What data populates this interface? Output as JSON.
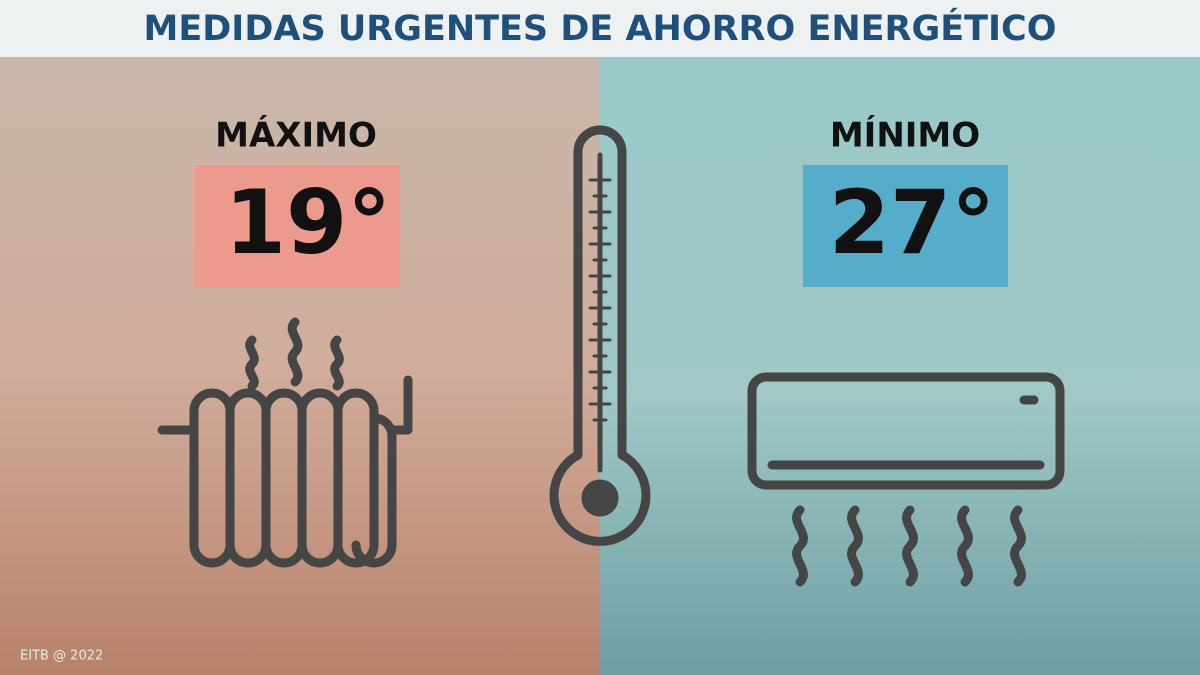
{
  "header": {
    "title": "MEDIDAS URGENTES DE AHORRO ENERGÉTICO"
  },
  "left": {
    "label": "MÁXIMO",
    "value": "19°"
  },
  "right": {
    "label": "MÍNIMO",
    "value": "27°"
  },
  "footer": {
    "credit": "EITB @ 2022"
  }
}
